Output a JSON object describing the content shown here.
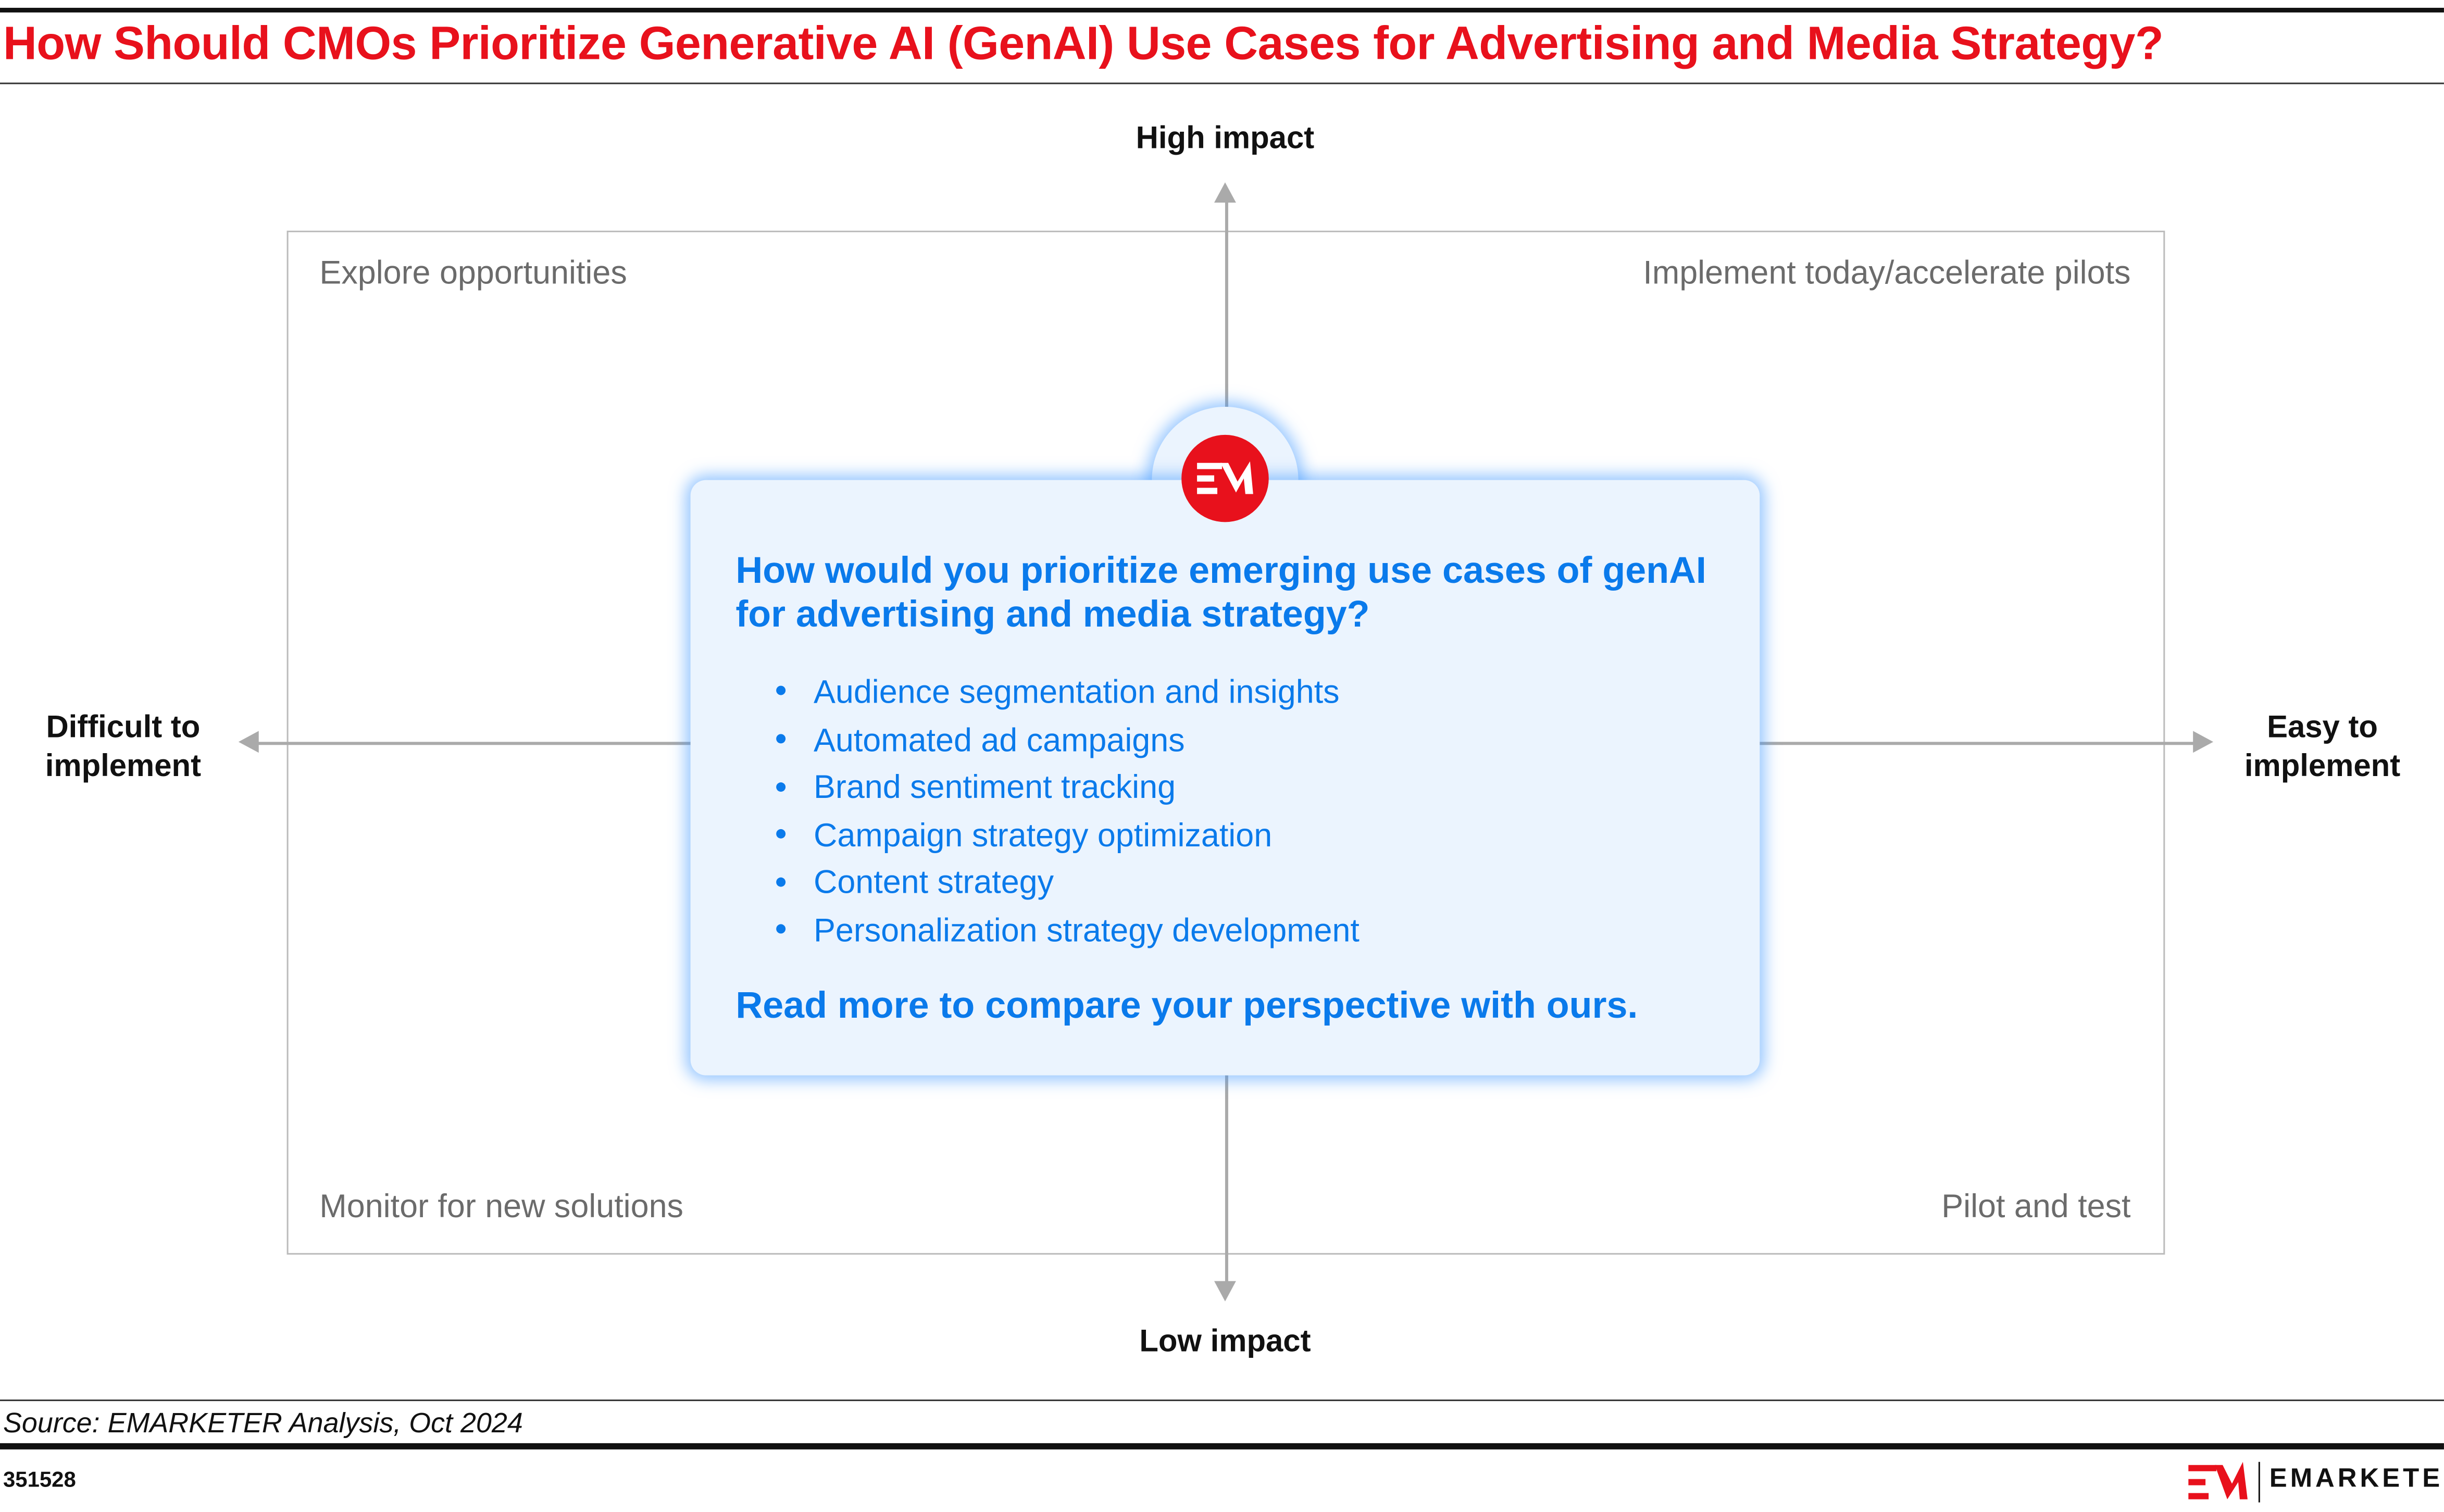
{
  "title": "How Should CMOs Prioritize Generative AI (GenAI) Use Cases for Advertising and Media Strategy?",
  "axes": {
    "top": "High impact",
    "bottom": "Low impact",
    "left": "Difficult to implement",
    "right": "Easy to implement"
  },
  "quadrants": {
    "top_left": "Explore opportunities",
    "top_right": "Implement today/accelerate pilots",
    "bottom_left": "Monitor for new solutions",
    "bottom_right": "Pilot and test"
  },
  "card": {
    "question": "How would you prioritize emerging use cases of genAI for advertising and media strategy?",
    "items": [
      "Audience segmentation and insights",
      "Automated ad campaigns",
      "Brand sentiment tracking",
      "Campaign strategy optimization",
      "Content strategy",
      "Personalization strategy development"
    ],
    "cta": "Read more to compare your perspective with ours.",
    "logo": "EM"
  },
  "footer": {
    "source": "Source: EMARKETER Analysis, Oct 2024",
    "chart_id": "351528",
    "brand": "EMARKETER"
  },
  "colors": {
    "title": "#E8111C",
    "accent_blue": "#0A7AEB",
    "card_bg": "#EBF4FE"
  }
}
